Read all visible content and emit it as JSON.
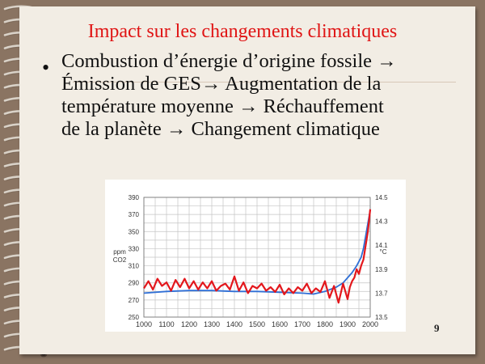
{
  "slide": {
    "title": "Impact sur les changements climatiques",
    "bullet_lines": [
      "Combustion d’énergie d’origine fossile →",
      "Émission de GES→ Augmentation de la",
      "température moyenne  → Réchauffement",
      "de la planète → Changement climatique"
    ],
    "page_number": "9"
  },
  "chart_data": {
    "type": "line",
    "x_ticks": [
      "1000",
      "1100",
      "1200",
      "1300",
      "1400",
      "1500",
      "1600",
      "1700",
      "1800",
      "1900",
      "2000"
    ],
    "xlim": [
      1000,
      2000
    ],
    "y_left": {
      "label_line1": "ppm",
      "label_line2": "CO2",
      "ticks": [
        "390",
        "370",
        "350",
        "330",
        "310",
        "290",
        "270",
        "250"
      ],
      "lim": [
        250,
        390
      ]
    },
    "y_right": {
      "label": "°C",
      "ticks": [
        "14.5",
        "14.3",
        "14.1",
        "13.9",
        "13.7",
        "13.5"
      ],
      "lim": [
        13.5,
        14.5
      ]
    },
    "grid": true,
    "series": [
      {
        "axis": "left",
        "color": "#2f6fd6",
        "x": [
          1000,
          1100,
          1200,
          1300,
          1400,
          1500,
          1600,
          1700,
          1750,
          1800,
          1850,
          1880,
          1900,
          1920,
          1940,
          1950,
          1960,
          1970,
          1980,
          1990,
          2000
        ],
        "values": [
          278,
          280,
          281,
          281,
          280,
          280,
          279,
          278,
          277,
          280,
          285,
          290,
          296,
          302,
          310,
          315,
          320,
          330,
          345,
          360,
          375
        ]
      },
      {
        "axis": "right",
        "color": "#e3171c",
        "x": [
          1000,
          1020,
          1040,
          1060,
          1080,
          1100,
          1120,
          1140,
          1160,
          1180,
          1200,
          1220,
          1240,
          1260,
          1280,
          1300,
          1320,
          1340,
          1360,
          1380,
          1400,
          1420,
          1440,
          1460,
          1480,
          1500,
          1520,
          1540,
          1560,
          1580,
          1600,
          1620,
          1640,
          1660,
          1680,
          1700,
          1720,
          1740,
          1760,
          1780,
          1800,
          1820,
          1840,
          1860,
          1880,
          1900,
          1910,
          1920,
          1930,
          1940,
          1950,
          1960,
          1970,
          1980,
          1990,
          2000
        ],
        "values": [
          13.74,
          13.8,
          13.73,
          13.82,
          13.76,
          13.79,
          13.72,
          13.81,
          13.75,
          13.82,
          13.74,
          13.8,
          13.73,
          13.79,
          13.74,
          13.8,
          13.72,
          13.76,
          13.78,
          13.73,
          13.84,
          13.72,
          13.79,
          13.7,
          13.76,
          13.74,
          13.78,
          13.72,
          13.75,
          13.71,
          13.77,
          13.69,
          13.74,
          13.7,
          13.75,
          13.72,
          13.78,
          13.7,
          13.74,
          13.71,
          13.8,
          13.66,
          13.76,
          13.62,
          13.78,
          13.65,
          13.75,
          13.8,
          13.83,
          13.9,
          13.86,
          13.93,
          13.98,
          14.1,
          14.22,
          14.4
        ]
      }
    ]
  }
}
